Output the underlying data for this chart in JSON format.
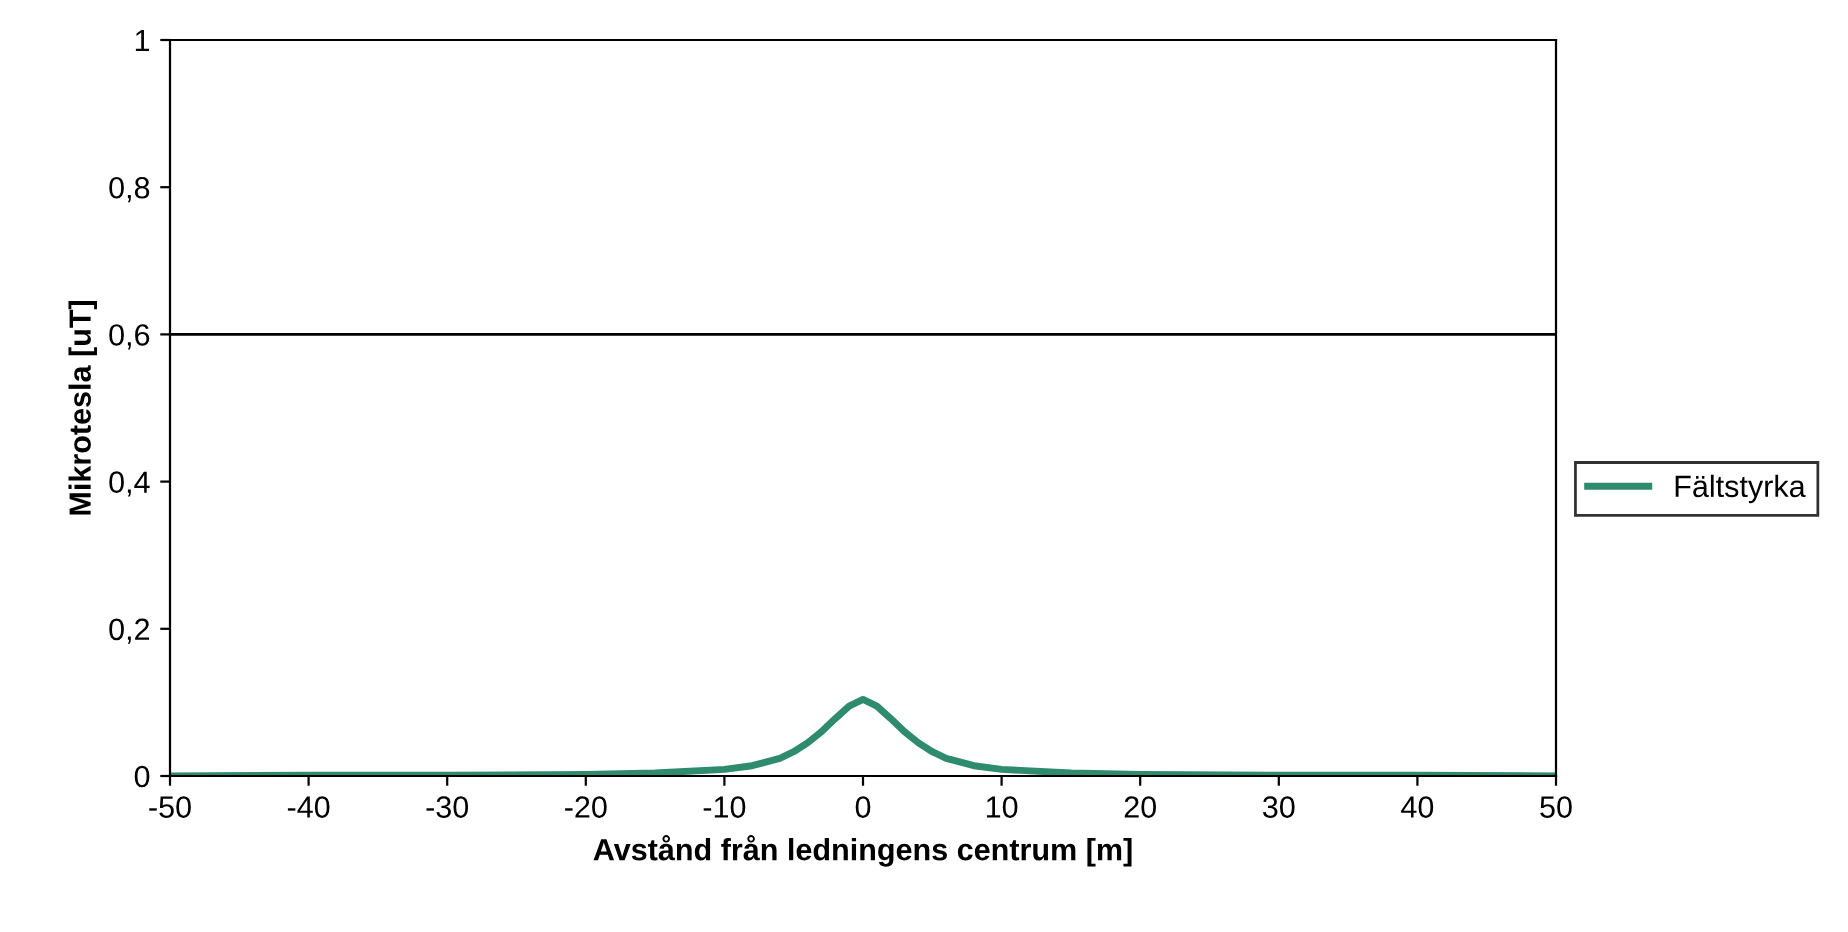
{
  "chart_data": {
    "type": "line",
    "xlabel": "Avstånd från ledningens centrum [m]",
    "ylabel": "Mikrotesla [uT]",
    "series": [
      {
        "name": "Fältstyrka",
        "color": "#2e8b6e",
        "x": [
          -50,
          -40,
          -30,
          -20,
          -15,
          -10,
          -8,
          -6,
          -5,
          -4,
          -3,
          -2,
          -1,
          0,
          1,
          2,
          3,
          4,
          5,
          6,
          8,
          10,
          15,
          20,
          30,
          40,
          50
        ],
        "values": [
          0,
          0.001,
          0.001,
          0.002,
          0.004,
          0.009,
          0.014,
          0.024,
          0.033,
          0.045,
          0.06,
          0.078,
          0.095,
          0.104,
          0.095,
          0.078,
          0.06,
          0.045,
          0.033,
          0.024,
          0.014,
          0.009,
          0.004,
          0.002,
          0.001,
          0.001,
          0
        ]
      }
    ],
    "xlim": [
      -50,
      50
    ],
    "xticks": [
      -50,
      -40,
      -30,
      -20,
      -10,
      0,
      10,
      20,
      30,
      40,
      50
    ],
    "ylim": [
      0,
      1
    ],
    "yticks": [
      0,
      {
        "value": 0.2,
        "label": "0,2"
      },
      {
        "value": 0.4,
        "label": "0,4"
      },
      {
        "value": 0.6,
        "label": "0,6"
      },
      {
        "value": 0.8,
        "label": "0,8"
      },
      1
    ],
    "ref_lines": [
      {
        "axis": "y",
        "value": 0.6,
        "color": "#000000"
      }
    ],
    "legend": "right",
    "line_style": "solid",
    "marker": "none"
  }
}
